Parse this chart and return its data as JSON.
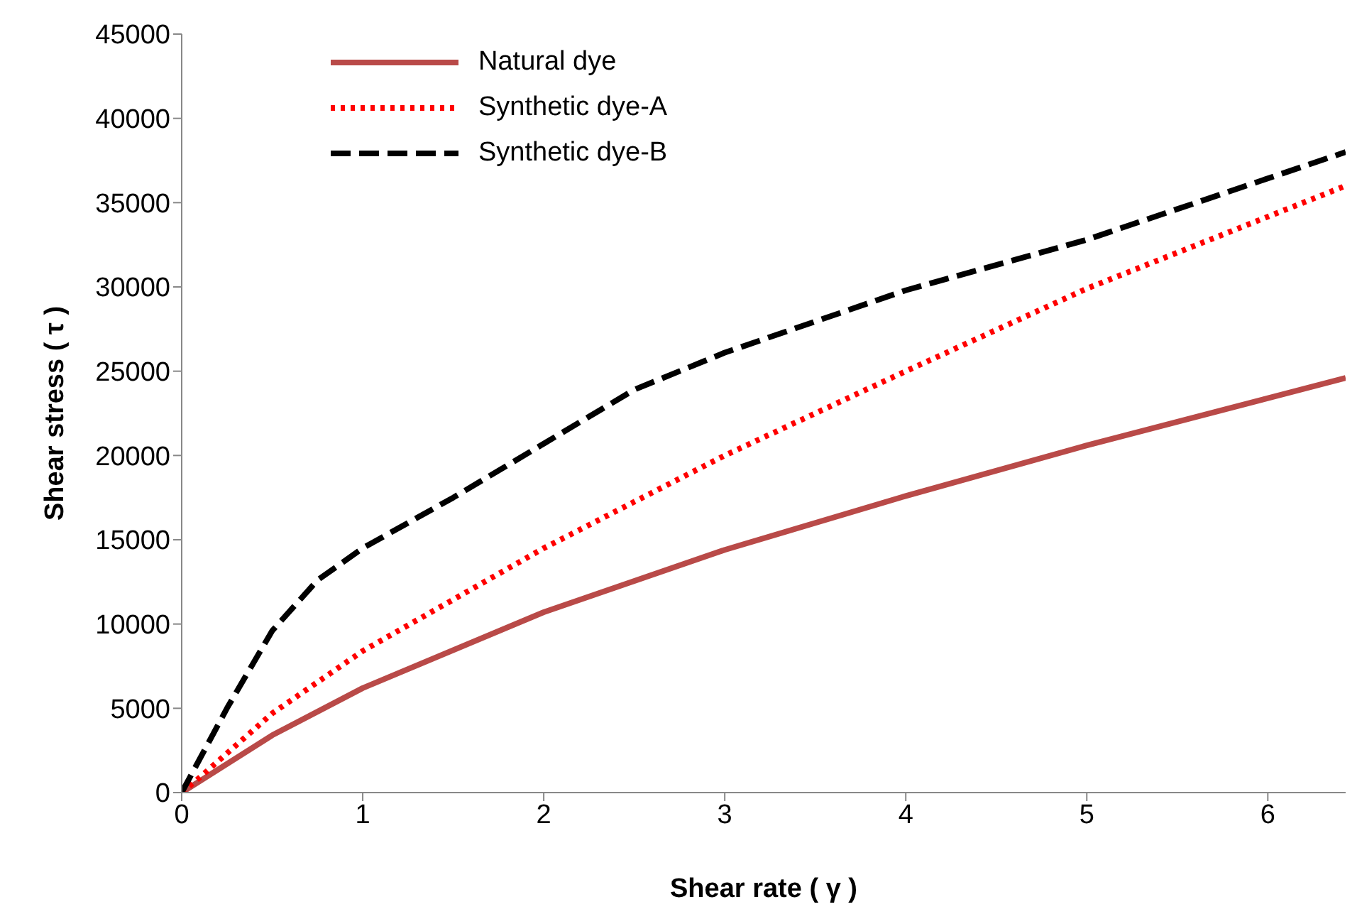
{
  "chart_data": {
    "type": "line",
    "xlabel": "Shear rate ( γ )",
    "ylabel": "Shear stress ( τ )",
    "xlim": [
      0,
      6.43
    ],
    "xticks": [
      0,
      1,
      2,
      3,
      4,
      5,
      6
    ],
    "ylim": [
      0,
      45000
    ],
    "yticks": [
      0,
      5000,
      10000,
      15000,
      20000,
      25000,
      30000,
      35000,
      40000,
      45000
    ],
    "grid": false,
    "legend": "top left",
    "marker": "none",
    "series": [
      {
        "name": "Natural dye",
        "color": "#b94a48",
        "line_style": "solid",
        "x": [
          0,
          0.5,
          1,
          2,
          3,
          4,
          5,
          6.43
        ],
        "values": [
          0,
          3400,
          6200,
          10700,
          14400,
          17600,
          20600,
          24600
        ]
      },
      {
        "name": "Synthetic dye-A",
        "color": "#ff0000",
        "line_style": "dotted",
        "x": [
          0,
          0.1,
          0.5,
          1,
          2,
          3,
          4,
          5,
          6.43
        ],
        "values": [
          0,
          900,
          4700,
          8400,
          14500,
          20000,
          25000,
          29900,
          36000
        ]
      },
      {
        "name": "Synthetic dye-B",
        "color": "#000000",
        "line_style": "dashed",
        "x": [
          0,
          0.25,
          0.5,
          0.75,
          1,
          1.5,
          2,
          2.5,
          3,
          4,
          5,
          6.43
        ],
        "values": [
          0,
          5000,
          9600,
          12600,
          14500,
          17500,
          20700,
          23900,
          26100,
          29800,
          32800,
          38000
        ]
      }
    ]
  }
}
